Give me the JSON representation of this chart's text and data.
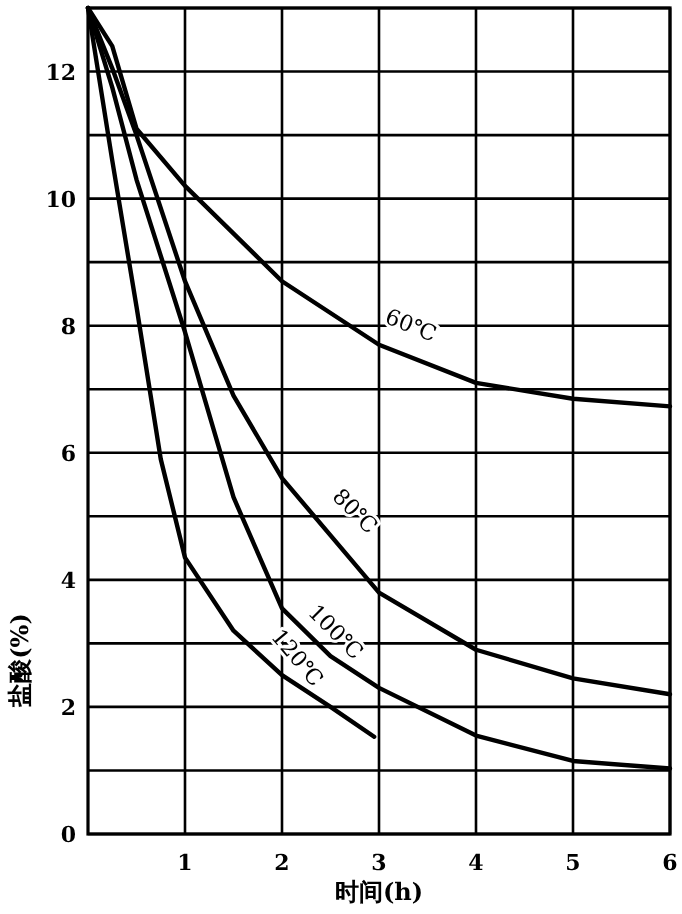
{
  "chart_data": {
    "type": "line",
    "xlabel": "时间(h)",
    "ylabel": "盐酸(%)",
    "xlim": [
      0,
      6
    ],
    "ylim": [
      0,
      13
    ],
    "xticks": [
      1,
      2,
      3,
      4,
      5,
      6
    ],
    "yticks": [
      0,
      {
        "value": 1,
        "label": null
      },
      2,
      {
        "value": 3,
        "label": null
      },
      4,
      {
        "value": 5,
        "label": null
      },
      6,
      {
        "value": 7,
        "label": null
      },
      8,
      {
        "value": 9,
        "label": null
      },
      10,
      {
        "value": 11,
        "label": null
      },
      12,
      {
        "value": 13,
        "label": null
      }
    ],
    "grid": true,
    "color": "#000000",
    "line_style": "solid",
    "marker": "none",
    "series": [
      {
        "name": "60℃",
        "color": "#000000",
        "x": [
          0,
          0.25,
          0.5,
          1,
          2,
          3,
          4,
          5,
          6
        ],
        "values": [
          13,
          12.4,
          11.1,
          10.2,
          8.7,
          7.7,
          7.1,
          6.85,
          6.73
        ]
      },
      {
        "name": "80℃",
        "color": "#000000",
        "x": [
          0,
          0.25,
          0.5,
          1,
          1.5,
          2,
          2.5,
          3,
          4,
          5,
          6
        ],
        "values": [
          13,
          12.05,
          11.0,
          8.7,
          6.9,
          5.6,
          4.7,
          3.8,
          2.9,
          2.45,
          2.2
        ]
      },
      {
        "name": "100℃",
        "color": "#000000",
        "x": [
          0,
          0.25,
          0.5,
          1,
          1.5,
          2,
          2.5,
          3,
          4,
          5,
          6
        ],
        "values": [
          13,
          11.75,
          10.3,
          7.9,
          5.3,
          3.55,
          2.8,
          2.3,
          1.55,
          1.15,
          1.03
        ]
      },
      {
        "name": "120℃",
        "color": "#000000",
        "x": [
          0,
          0.25,
          0.5,
          0.75,
          1,
          1.5,
          2,
          2.5,
          2.95
        ],
        "values": [
          13,
          10.6,
          8.3,
          5.9,
          4.35,
          3.2,
          2.5,
          2.0,
          1.53
        ]
      }
    ]
  }
}
